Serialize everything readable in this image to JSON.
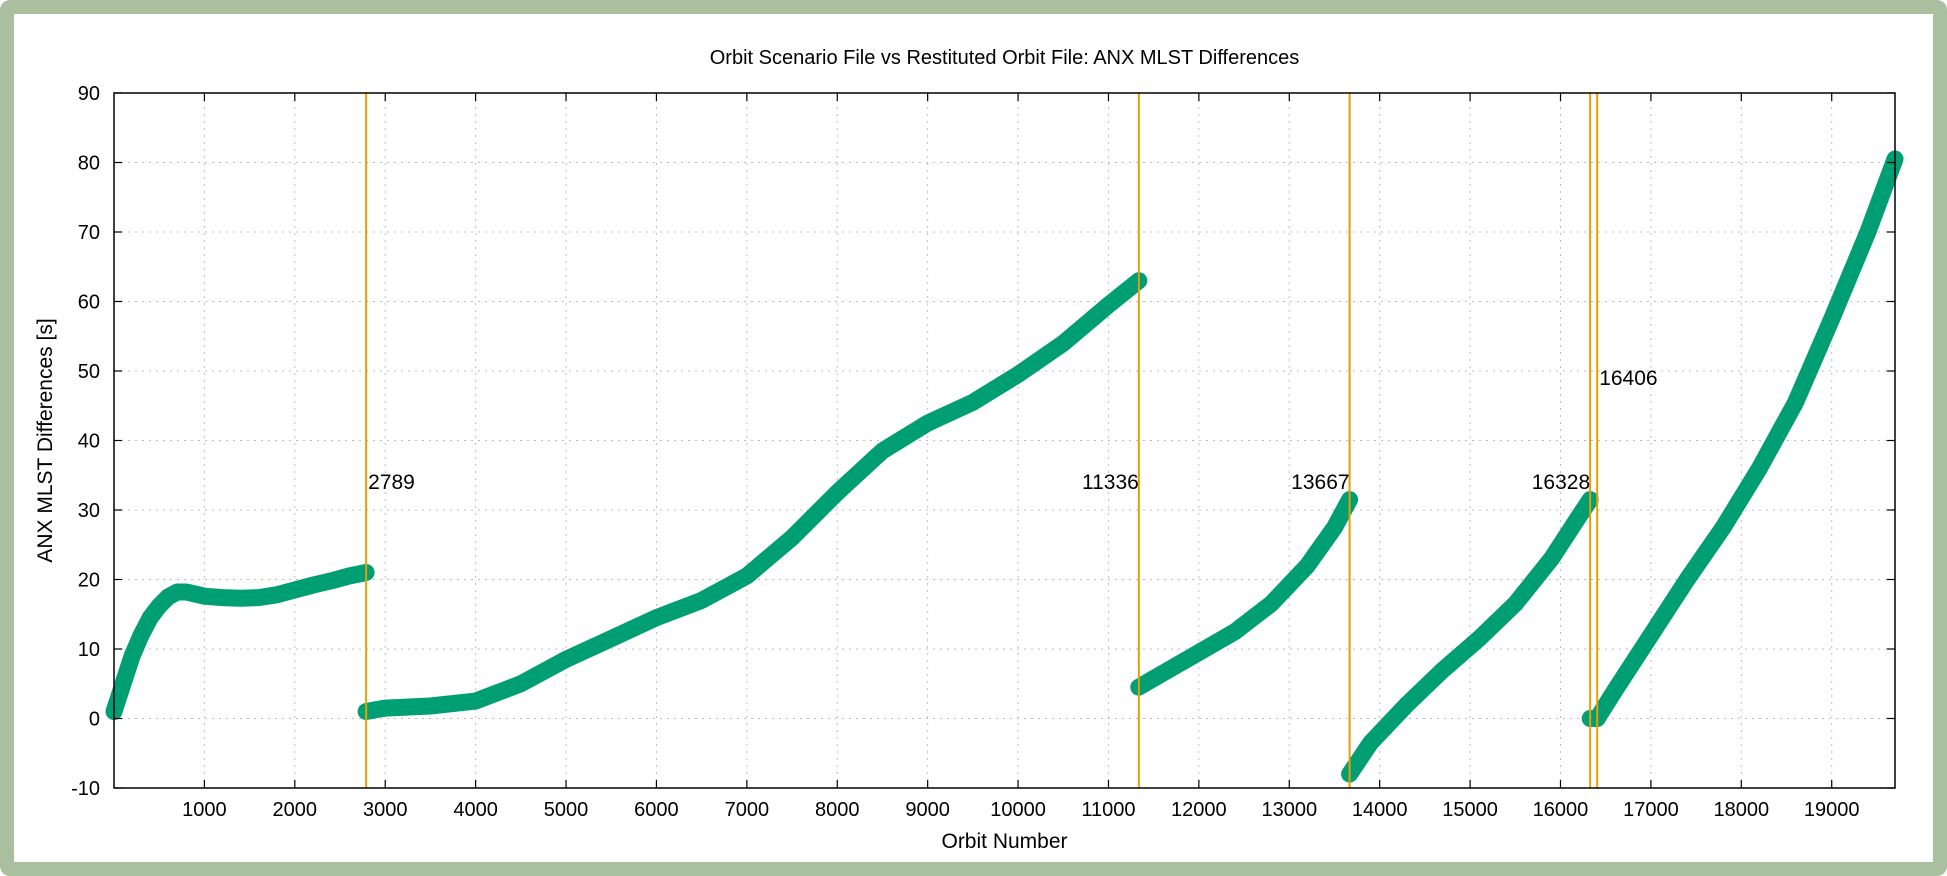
{
  "chart_data": {
    "type": "line",
    "title": "Orbit Scenario File vs Restituted Orbit File: ANX MLST Differences",
    "xlabel": "Orbit Number",
    "ylabel": "ANX MLST Differences [s]",
    "xlim": [
      0,
      19700
    ],
    "ylim": [
      -10,
      90
    ],
    "xticks": [
      1000,
      2000,
      3000,
      4000,
      5000,
      6000,
      7000,
      8000,
      9000,
      10000,
      11000,
      12000,
      13000,
      14000,
      15000,
      16000,
      17000,
      18000,
      19000
    ],
    "yticks": [
      -10,
      0,
      10,
      20,
      30,
      40,
      50,
      60,
      70,
      80,
      90
    ],
    "grid": true,
    "series_color": "#009e73",
    "marker_color": "#e69f00",
    "segments": [
      {
        "x": [
          0,
          100,
          200,
          300,
          400,
          500,
          600,
          700,
          800,
          1000,
          1200,
          1400,
          1600,
          1800,
          2000,
          2200,
          2400,
          2600,
          2789
        ],
        "y": [
          1,
          5,
          9,
          12,
          14.5,
          16.2,
          17.5,
          18.2,
          18.2,
          17.6,
          17.4,
          17.3,
          17.4,
          17.8,
          18.5,
          19.2,
          19.8,
          20.5,
          21
        ]
      },
      {
        "x": [
          2789,
          3000,
          3500,
          4000,
          4500,
          5000,
          5500,
          6000,
          6500,
          7000,
          7500,
          8000,
          8500,
          9000,
          9500,
          10000,
          10500,
          11000,
          11336
        ],
        "y": [
          1,
          1.5,
          1.8,
          2.5,
          5,
          8.5,
          11.5,
          14.5,
          17,
          20.5,
          26,
          32.5,
          38.5,
          42.5,
          45.5,
          49.5,
          54,
          59.5,
          63
        ]
      },
      {
        "x": [
          11336,
          11600,
          12000,
          12400,
          12800,
          13200,
          13500,
          13667
        ],
        "y": [
          4.5,
          6.5,
          9.5,
          12.5,
          16.5,
          22,
          27.5,
          31.5
        ]
      },
      {
        "x": [
          13667,
          13900,
          14300,
          14700,
          15100,
          15500,
          15900,
          16200,
          16328
        ],
        "y": [
          -8,
          -3.5,
          2,
          7,
          11.5,
          16.5,
          23,
          29,
          31.5
        ]
      },
      {
        "x": [
          16328,
          16406
        ],
        "y": [
          0,
          0
        ]
      },
      {
        "x": [
          16406,
          16600,
          17000,
          17400,
          17800,
          18200,
          18600,
          19000,
          19400,
          19700
        ],
        "y": [
          0,
          4,
          12,
          20,
          27.5,
          36,
          45.5,
          57.5,
          70,
          80.5
        ]
      }
    ],
    "markers": [
      {
        "x": 2789,
        "label": "2789",
        "label_y": 34,
        "align": "right"
      },
      {
        "x": 11336,
        "label": "11336",
        "label_y": 34,
        "align": "left"
      },
      {
        "x": 13667,
        "label": "13667",
        "label_y": 34,
        "align": "left"
      },
      {
        "x": 16328,
        "label": "16328",
        "label_y": 34,
        "align": "left"
      },
      {
        "x": 16406,
        "label": "16406",
        "label_y": 49,
        "align": "right"
      }
    ]
  }
}
